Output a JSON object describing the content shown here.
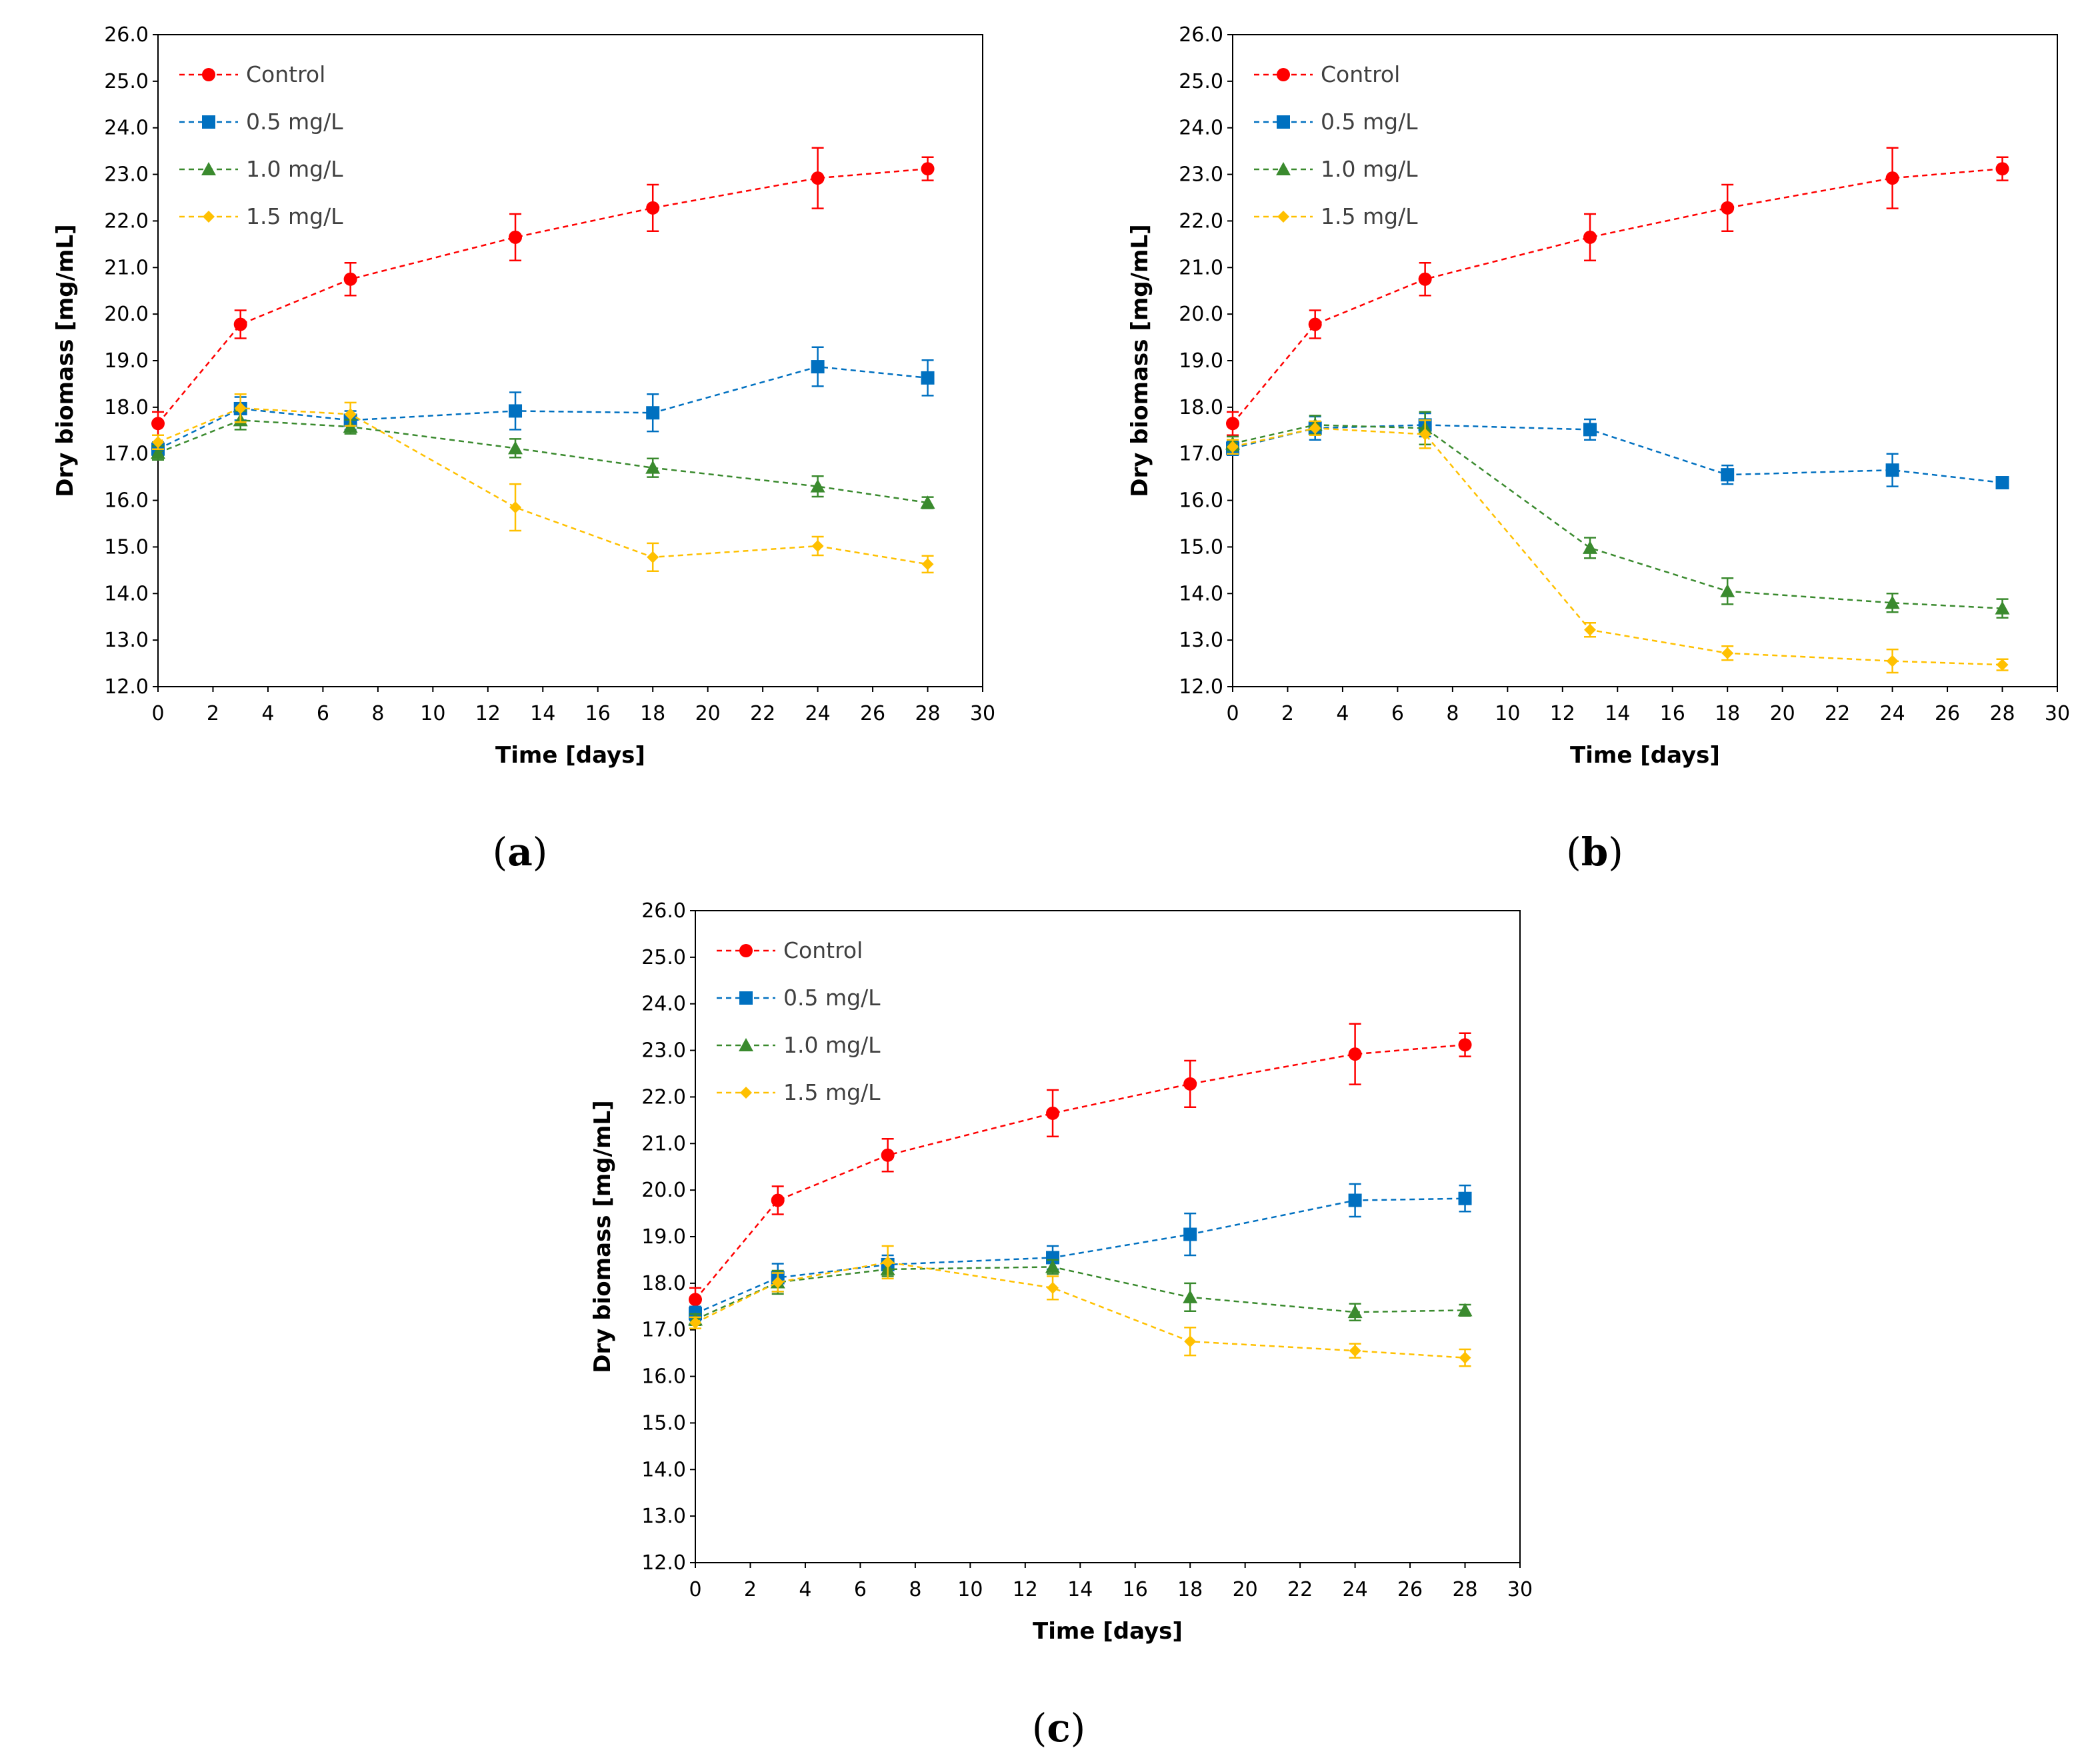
{
  "chart_data": [
    {
      "panel_label": "a",
      "type": "line",
      "xlabel": "Time [days]",
      "ylabel": "Dry biomass [mg/mL]",
      "xlim": [
        0,
        30
      ],
      "ylim": [
        12.0,
        26.0
      ],
      "x_ticks": [
        0,
        2,
        4,
        6,
        8,
        10,
        12,
        14,
        16,
        18,
        20,
        22,
        24,
        26,
        28,
        30
      ],
      "y_ticks": [
        "12.0",
        "13.0",
        "14.0",
        "15.0",
        "16.0",
        "17.0",
        "18.0",
        "19.0",
        "20.0",
        "21.0",
        "22.0",
        "23.0",
        "24.0",
        "25.0",
        "26.0"
      ],
      "grid": false,
      "legend_position": "top-left",
      "x": [
        0,
        3,
        7,
        13,
        18,
        24,
        28
      ],
      "series": [
        {
          "name": "Control",
          "color": "#ff0000",
          "marker": "circle",
          "values": [
            17.65,
            19.78,
            20.75,
            21.65,
            22.28,
            22.92,
            23.12
          ],
          "errors": [
            0.25,
            0.3,
            0.35,
            0.5,
            0.5,
            0.65,
            0.25
          ]
        },
        {
          "name": "0.5 mg/L",
          "color": "#0070c0",
          "marker": "square",
          "values": [
            17.1,
            17.97,
            17.72,
            17.92,
            17.88,
            18.87,
            18.63
          ],
          "errors": [
            0.15,
            0.25,
            0.2,
            0.4,
            0.4,
            0.42,
            0.38
          ]
        },
        {
          "name": "1.0 mg/L",
          "color": "#3a8a2e",
          "marker": "triangle",
          "values": [
            17.02,
            17.72,
            17.58,
            17.12,
            16.7,
            16.3,
            15.95
          ],
          "errors": [
            0.15,
            0.2,
            0.15,
            0.2,
            0.2,
            0.22,
            0.12
          ]
        },
        {
          "name": "1.5 mg/L",
          "color": "#ffc000",
          "marker": "diamond",
          "values": [
            17.25,
            17.98,
            17.85,
            15.85,
            14.78,
            15.02,
            14.63
          ],
          "errors": [
            0.15,
            0.3,
            0.25,
            0.5,
            0.3,
            0.2,
            0.18
          ]
        }
      ]
    },
    {
      "panel_label": "b",
      "type": "line",
      "xlabel": "Time [days]",
      "ylabel": "Dry biomass [mg/mL]",
      "xlim": [
        0,
        30
      ],
      "ylim": [
        12.0,
        26.0
      ],
      "x_ticks": [
        0,
        2,
        4,
        6,
        8,
        10,
        12,
        14,
        16,
        18,
        20,
        22,
        24,
        26,
        28,
        30
      ],
      "y_ticks": [
        "12.0",
        "13.0",
        "14.0",
        "15.0",
        "16.0",
        "17.0",
        "18.0",
        "19.0",
        "20.0",
        "21.0",
        "22.0",
        "23.0",
        "24.0",
        "25.0",
        "26.0"
      ],
      "grid": false,
      "legend_position": "top-left",
      "x": [
        0,
        3,
        7,
        13,
        18,
        24,
        28
      ],
      "series": [
        {
          "name": "Control",
          "color": "#ff0000",
          "marker": "circle",
          "values": [
            17.65,
            19.78,
            20.75,
            21.65,
            22.28,
            22.92,
            23.12
          ],
          "errors": [
            0.25,
            0.3,
            0.35,
            0.5,
            0.5,
            0.65,
            0.25
          ]
        },
        {
          "name": "0.5 mg/L",
          "color": "#0070c0",
          "marker": "square",
          "values": [
            17.12,
            17.55,
            17.62,
            17.52,
            16.55,
            16.65,
            16.38
          ],
          "errors": [
            0.15,
            0.25,
            0.25,
            0.22,
            0.2,
            0.35,
            0.08
          ]
        },
        {
          "name": "1.0 mg/L",
          "color": "#3a8a2e",
          "marker": "triangle",
          "values": [
            17.22,
            17.62,
            17.55,
            14.98,
            14.05,
            13.8,
            13.68
          ],
          "errors": [
            0.15,
            0.2,
            0.35,
            0.22,
            0.28,
            0.2,
            0.2
          ]
        },
        {
          "name": "1.5 mg/L",
          "color": "#ffc000",
          "marker": "diamond",
          "values": [
            17.15,
            17.55,
            17.42,
            13.22,
            12.72,
            12.55,
            12.47
          ],
          "errors": [
            0.15,
            0.15,
            0.3,
            0.15,
            0.15,
            0.25,
            0.12
          ]
        }
      ]
    },
    {
      "panel_label": "c",
      "type": "line",
      "xlabel": "Time [days]",
      "ylabel": "Dry biomass [mg/mL]",
      "xlim": [
        0,
        30
      ],
      "ylim": [
        12.0,
        26.0
      ],
      "x_ticks": [
        0,
        2,
        4,
        6,
        8,
        10,
        12,
        14,
        16,
        18,
        20,
        22,
        24,
        26,
        28,
        30
      ],
      "y_ticks": [
        "12.0",
        "13.0",
        "14.0",
        "15.0",
        "16.0",
        "17.0",
        "18.0",
        "19.0",
        "20.0",
        "21.0",
        "22.0",
        "23.0",
        "24.0",
        "25.0",
        "26.0"
      ],
      "grid": false,
      "legend_position": "top-left",
      "x": [
        0,
        3,
        7,
        13,
        18,
        24,
        28
      ],
      "series": [
        {
          "name": "Control",
          "color": "#ff0000",
          "marker": "circle",
          "values": [
            17.65,
            19.78,
            20.75,
            21.65,
            22.28,
            22.92,
            23.12
          ],
          "errors": [
            0.25,
            0.3,
            0.35,
            0.5,
            0.5,
            0.65,
            0.25
          ]
        },
        {
          "name": "0.5 mg/L",
          "color": "#0070c0",
          "marker": "square",
          "values": [
            17.35,
            18.12,
            18.4,
            18.55,
            19.05,
            19.78,
            19.82
          ],
          "errors": [
            0.15,
            0.3,
            0.2,
            0.25,
            0.45,
            0.35,
            0.28
          ]
        },
        {
          "name": "1.0 mg/L",
          "color": "#3a8a2e",
          "marker": "triangle",
          "values": [
            17.22,
            18.02,
            18.3,
            18.35,
            17.7,
            17.38,
            17.42
          ],
          "errors": [
            0.12,
            0.25,
            0.15,
            0.15,
            0.3,
            0.18,
            0.12
          ]
        },
        {
          "name": "1.5 mg/L",
          "color": "#ffc000",
          "marker": "diamond",
          "values": [
            17.15,
            18.02,
            18.45,
            17.9,
            16.75,
            16.55,
            16.4
          ],
          "errors": [
            0.12,
            0.2,
            0.35,
            0.25,
            0.3,
            0.15,
            0.18
          ]
        }
      ]
    }
  ]
}
